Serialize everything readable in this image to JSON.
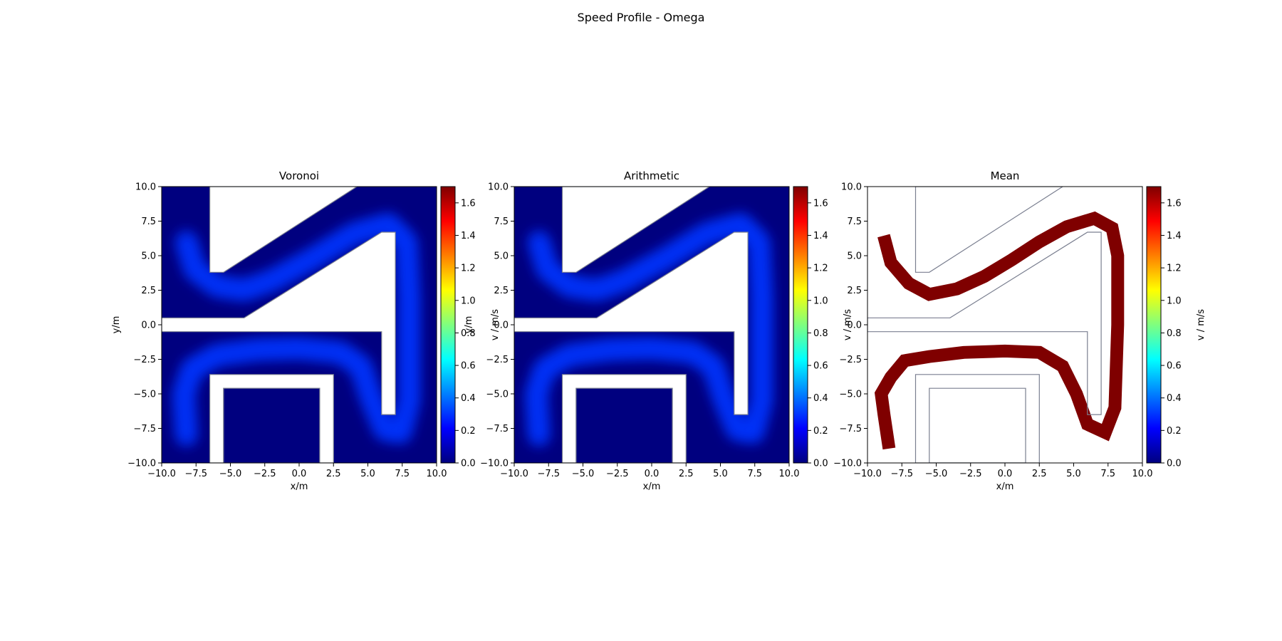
{
  "figure": {
    "suptitle": "Speed Profile - Omega"
  },
  "colors": {
    "walls": "#7a7f90",
    "background": "#ffffff",
    "colormap": "jet",
    "colormap_stops": [
      "#00007f",
      "#0000ff",
      "#007fff",
      "#00ffff",
      "#7fff7f",
      "#ffff00",
      "#ff7f00",
      "#ff0000",
      "#7f0000"
    ]
  },
  "geometry_walls": [
    [
      [
        -6.5,
        10.0
      ],
      [
        -6.5,
        3.8
      ],
      [
        -5.5,
        3.8
      ],
      [
        4.2,
        10.0
      ]
    ],
    [
      [
        -10.0,
        0.5
      ],
      [
        -4.0,
        0.5
      ],
      [
        6.0,
        6.7
      ],
      [
        7.0,
        6.7
      ],
      [
        7.0,
        -6.5
      ],
      [
        6.0,
        -6.5
      ],
      [
        6.0,
        -0.5
      ],
      [
        -10.0,
        -0.5
      ]
    ],
    [
      [
        -6.5,
        -10.0
      ],
      [
        -6.5,
        -3.6
      ],
      [
        2.5,
        -3.6
      ],
      [
        2.5,
        -10.0
      ]
    ],
    [
      [
        -5.5,
        -10.0
      ],
      [
        -5.5,
        -4.6
      ],
      [
        1.5,
        -4.6
      ],
      [
        1.5,
        -10.0
      ]
    ]
  ],
  "chart_data": [
    {
      "type": "heatmap",
      "title": "Voronoi",
      "xlabel": "x/m",
      "ylabel": "y/m",
      "xlim": [
        -10.0,
        10.0
      ],
      "ylim": [
        -10.0,
        10.0
      ],
      "xticks": [
        "−10.0",
        "−7.5",
        "−5.0",
        "−2.5",
        "0.0",
        "2.5",
        "5.0",
        "7.5",
        "10.0"
      ],
      "yticks": [
        "−10.0",
        "−7.5",
        "−5.0",
        "−2.5",
        "0.0",
        "2.5",
        "5.0",
        "7.5",
        "10.0"
      ],
      "colorbar": {
        "label": "v / m/s",
        "range": [
          0.0,
          1.7
        ],
        "ticks": [
          "0.0",
          "0.2",
          "0.4",
          "0.6",
          "0.8",
          "1.0",
          "1.2",
          "1.4",
          "1.6"
        ]
      },
      "background_value": 0.0,
      "path_value": 0.3,
      "path_centerline": [
        [
          -8.2,
          6.0
        ],
        [
          -7.6,
          4.0
        ],
        [
          -6.0,
          2.8
        ],
        [
          -4.0,
          2.5
        ],
        [
          -2.0,
          3.2
        ],
        [
          1.0,
          4.8
        ],
        [
          4.0,
          6.6
        ],
        [
          6.5,
          7.3
        ],
        [
          7.8,
          6.0
        ],
        [
          8.0,
          2.0
        ],
        [
          8.0,
          -2.0
        ],
        [
          8.0,
          -5.5
        ],
        [
          7.4,
          -7.8
        ],
        [
          6.2,
          -7.6
        ],
        [
          5.2,
          -5.2
        ],
        [
          4.5,
          -3.0
        ],
        [
          3.0,
          -2.0
        ],
        [
          0.0,
          -1.7
        ],
        [
          -3.0,
          -1.8
        ],
        [
          -6.0,
          -2.2
        ],
        [
          -7.8,
          -3.2
        ],
        [
          -8.4,
          -5.0
        ],
        [
          -8.2,
          -8.0
        ]
      ]
    },
    {
      "type": "heatmap",
      "title": "Arithmetic",
      "xlabel": "x/m",
      "ylabel": "y/m",
      "xlim": [
        -10.0,
        10.0
      ],
      "ylim": [
        -10.0,
        10.0
      ],
      "xticks": [
        "−10.0",
        "−7.5",
        "−5.0",
        "−2.5",
        "0.0",
        "2.5",
        "5.0",
        "7.5",
        "10.0"
      ],
      "yticks": [
        "−10.0",
        "−7.5",
        "−5.0",
        "−2.5",
        "0.0",
        "2.5",
        "5.0",
        "7.5",
        "10.0"
      ],
      "colorbar": {
        "label": "v / m/s",
        "range": [
          0.0,
          1.7
        ],
        "ticks": [
          "0.0",
          "0.2",
          "0.4",
          "0.6",
          "0.8",
          "1.0",
          "1.2",
          "1.4",
          "1.6"
        ]
      },
      "background_value": 0.0,
      "path_value": 0.3,
      "path_centerline": [
        [
          -8.2,
          6.0
        ],
        [
          -7.6,
          4.0
        ],
        [
          -6.0,
          2.8
        ],
        [
          -4.0,
          2.5
        ],
        [
          -2.0,
          3.2
        ],
        [
          1.0,
          4.8
        ],
        [
          4.0,
          6.6
        ],
        [
          6.5,
          7.3
        ],
        [
          7.8,
          6.0
        ],
        [
          8.0,
          2.0
        ],
        [
          8.0,
          -2.0
        ],
        [
          8.0,
          -5.5
        ],
        [
          7.4,
          -7.8
        ],
        [
          6.2,
          -7.6
        ],
        [
          5.2,
          -5.2
        ],
        [
          4.5,
          -3.0
        ],
        [
          3.0,
          -2.0
        ],
        [
          0.0,
          -1.7
        ],
        [
          -3.0,
          -1.8
        ],
        [
          -6.0,
          -2.2
        ],
        [
          -7.8,
          -3.2
        ],
        [
          -8.4,
          -5.0
        ],
        [
          -8.2,
          -8.0
        ]
      ]
    },
    {
      "type": "heatmap",
      "title": "Mean",
      "xlabel": "x/m",
      "ylabel": "",
      "xlim": [
        -10.0,
        10.0
      ],
      "ylim": [
        -10.0,
        10.0
      ],
      "xticks": [
        "−10.0",
        "−7.5",
        "−5.0",
        "−2.5",
        "0.0",
        "2.5",
        "5.0",
        "7.5",
        "10.0"
      ],
      "yticks": [
        "−10.0",
        "−7.5",
        "−5.0",
        "−2.5",
        "0.0",
        "2.5",
        "5.0",
        "7.5",
        "10.0"
      ],
      "colorbar": {
        "label": "v / m/s",
        "range": [
          0.0,
          1.7
        ],
        "ticks": [
          "0.0",
          "0.2",
          "0.4",
          "0.6",
          "0.8",
          "1.0",
          "1.2",
          "1.4",
          "1.6"
        ]
      },
      "path_value": 1.7,
      "path_centerline": [
        [
          -8.7,
          6.0
        ],
        [
          -8.3,
          4.5
        ],
        [
          -7.0,
          3.0
        ],
        [
          -5.5,
          2.2
        ],
        [
          -3.5,
          2.6
        ],
        [
          -1.5,
          3.5
        ],
        [
          0.5,
          4.7
        ],
        [
          2.5,
          6.0
        ],
        [
          4.5,
          7.1
        ],
        [
          6.5,
          7.7
        ],
        [
          7.8,
          7.0
        ],
        [
          8.2,
          5.0
        ],
        [
          8.2,
          0.0
        ],
        [
          8.0,
          -6.0
        ],
        [
          7.3,
          -7.8
        ],
        [
          6.0,
          -7.2
        ],
        [
          5.2,
          -5.0
        ],
        [
          4.2,
          -3.0
        ],
        [
          2.5,
          -2.0
        ],
        [
          0.0,
          -1.9
        ],
        [
          -3.0,
          -2.0
        ],
        [
          -5.5,
          -2.3
        ],
        [
          -7.3,
          -2.6
        ],
        [
          -8.3,
          -3.8
        ],
        [
          -9.0,
          -5.0
        ],
        [
          -8.8,
          -6.5
        ],
        [
          -8.5,
          -8.5
        ]
      ]
    }
  ]
}
